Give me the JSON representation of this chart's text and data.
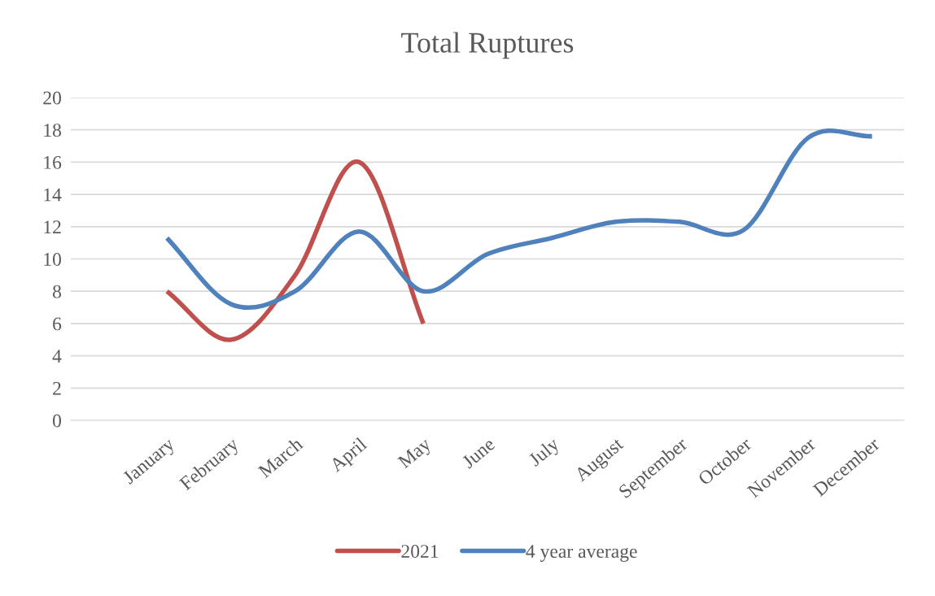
{
  "chart_data": {
    "type": "line",
    "title": "Total Ruptures",
    "categories": [
      "January",
      "February",
      "March",
      "April",
      "May",
      "June",
      "July",
      "August",
      "September",
      "October",
      "November",
      "December"
    ],
    "series": [
      {
        "name": "2021",
        "color": "#c0504d",
        "values": [
          8,
          5,
          9,
          16,
          6,
          null,
          null,
          null,
          null,
          null,
          null,
          null
        ]
      },
      {
        "name": "4 year average",
        "color": "#4f81bd",
        "values": [
          11.3,
          7.2,
          8,
          11.7,
          8,
          10.3,
          11.3,
          12.3,
          12.3,
          11.8,
          17.5,
          17.6
        ]
      }
    ],
    "ylim": [
      0,
      20
    ],
    "yticks": [
      0,
      2,
      4,
      6,
      8,
      10,
      12,
      14,
      16,
      18,
      20
    ],
    "grid": "y",
    "legend": "bottom"
  }
}
